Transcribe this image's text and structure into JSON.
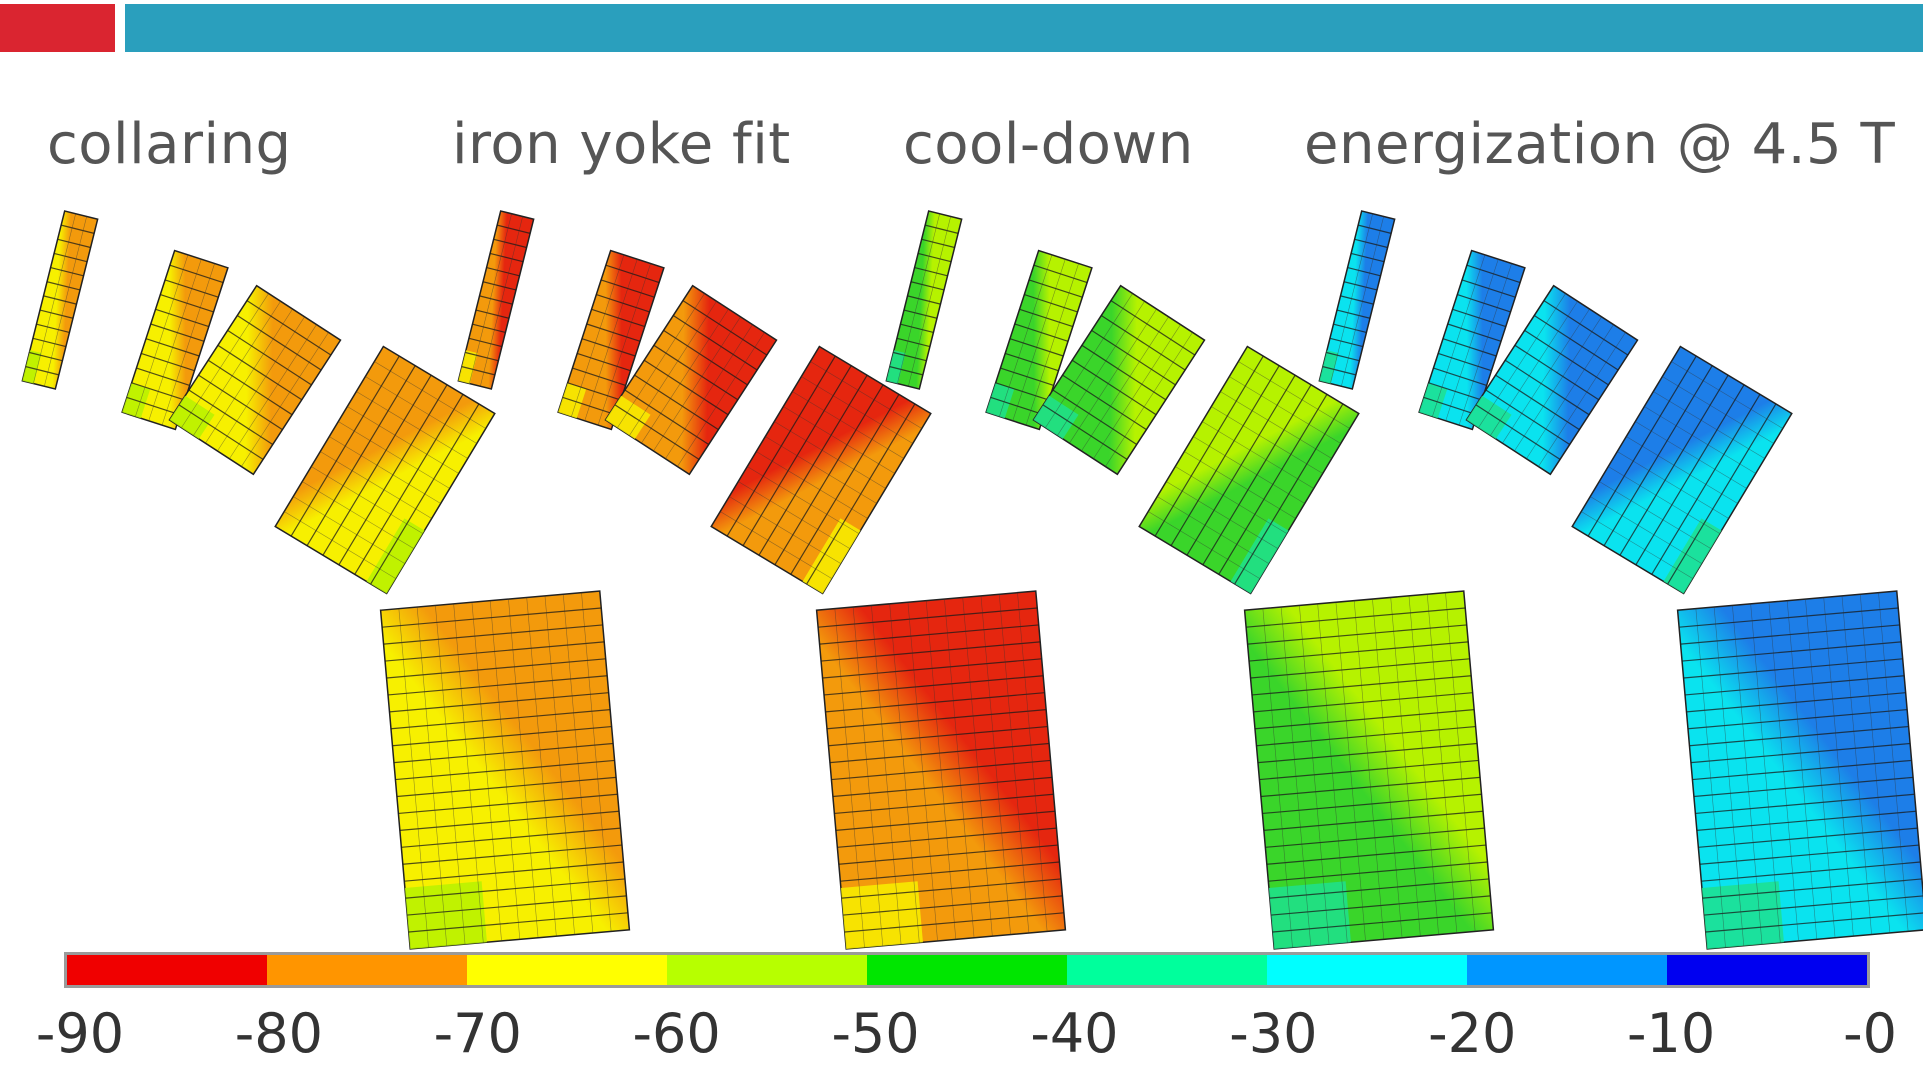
{
  "header": {
    "accent_left_color": "#da2530",
    "accent_right_color": "#2a9fbd"
  },
  "stages": [
    {
      "title": "collaring",
      "scheme": [
        "#f39a0c",
        "#f7f000",
        "#b6f200",
        "#39d01f"
      ]
    },
    {
      "title": "iron yoke fit",
      "scheme": [
        "#e5260f",
        "#f39a0c",
        "#f7f000",
        "#b6f200"
      ]
    },
    {
      "title": "cool-down",
      "scheme": [
        "#b6f200",
        "#3ad52a",
        "#1ee08e",
        "#17e2c8"
      ]
    },
    {
      "title": "energization @ 4.5 T",
      "scheme": [
        "#1d7ee8",
        "#0ae3ef",
        "#1ee08e",
        "#3ad52a"
      ]
    }
  ],
  "color_scale": {
    "colors": [
      "#f00000",
      "#ff9500",
      "#ffff00",
      "#b7ff00",
      "#00e600",
      "#00ff9c",
      "#00ffff",
      "#0096ff",
      "#0000f0"
    ],
    "tick_labels": [
      "-90",
      "-80",
      "-70",
      "-60",
      "-50",
      "-40",
      "-30",
      "-20",
      "-10",
      "-0"
    ]
  }
}
